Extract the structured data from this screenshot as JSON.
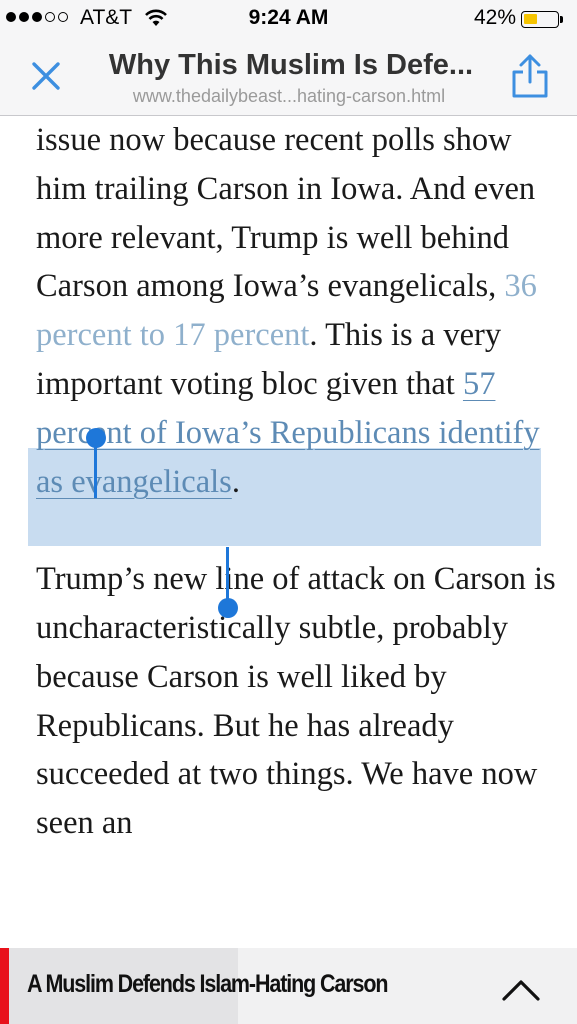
{
  "status_bar": {
    "carrier": "AT&T",
    "time": "9:24 AM",
    "battery_percent": "42%",
    "battery_level": 0.42,
    "signal_bars_filled": 3,
    "signal_bars_total": 5
  },
  "nav": {
    "title": "Why This Muslim Is Defe...",
    "url": "www.thedailybeast...hating-carson.html",
    "close_icon": "close-icon",
    "share_icon": "share-icon",
    "accent_color": "#3d8fe0"
  },
  "article": {
    "p1": {
      "text_before": "issue now because recent polls show him trailing Carson in Iowa. And even more relevant, Trump is well behind Carson among Iowa’s evangelicals, ",
      "link1": "36 percent to 17 percent",
      "text_mid": ". This is a very important voting bloc given that ",
      "link2": "57 percent of Iowa’s Republicans identify as evangelicals",
      "text_end": "."
    },
    "p2": "Trump’s new line of attack on Carson is uncharacteristically subtle, probably because Carson is well liked by Republicans. But he has already succeeded at two things. We have now seen an"
  },
  "bottom_bar": {
    "title": "A Muslim Defends Islam-Hating Carson",
    "chevron_icon": "chevron-up-icon",
    "accent_color": "#e8111b"
  },
  "selection_color": "#1e77d9"
}
